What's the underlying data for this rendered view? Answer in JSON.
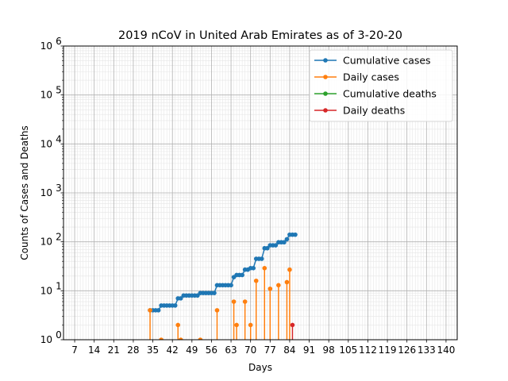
{
  "chart_data": {
    "type": "line",
    "title": "2019 nCoV in United Arab Emirates as of 3-20-20",
    "xlabel": "Days",
    "ylabel": "Counts of Cases and Deaths",
    "xlim": [
      3,
      144
    ],
    "ylim": [
      1,
      1000000
    ],
    "yscale": "log",
    "grid": true,
    "legend_position": "top-right",
    "x_ticks": [
      7,
      14,
      21,
      28,
      35,
      42,
      49,
      56,
      63,
      70,
      77,
      84,
      91,
      98,
      105,
      112,
      119,
      126,
      133,
      140
    ],
    "y_ticks": [
      {
        "value": 1,
        "base": "10",
        "exp": "0"
      },
      {
        "value": 10,
        "base": "10",
        "exp": "1"
      },
      {
        "value": 100,
        "base": "10",
        "exp": "2"
      },
      {
        "value": 1000,
        "base": "10",
        "exp": "3"
      },
      {
        "value": 10000,
        "base": "10",
        "exp": "4"
      },
      {
        "value": 100000,
        "base": "10",
        "exp": "5"
      },
      {
        "value": 1000000,
        "base": "10",
        "exp": "6"
      }
    ],
    "series": [
      {
        "name": "Cumulative cases",
        "color": "#1f77b4",
        "style": "line",
        "x": [
          34,
          35,
          36,
          37,
          38,
          39,
          40,
          41,
          42,
          43,
          44,
          45,
          46,
          47,
          48,
          49,
          50,
          51,
          52,
          53,
          54,
          55,
          56,
          57,
          58,
          59,
          60,
          61,
          62,
          63,
          64,
          65,
          66,
          67,
          68,
          69,
          70,
          71,
          72,
          73,
          74,
          75,
          76,
          77,
          78,
          79,
          80,
          81,
          82,
          83,
          84,
          85,
          86
        ],
        "y": [
          4,
          4,
          4,
          4,
          5,
          5,
          5,
          5,
          5,
          5,
          7,
          7,
          8,
          8,
          8,
          8,
          8,
          8,
          9,
          9,
          9,
          9,
          9,
          9,
          13,
          13,
          13,
          13,
          13,
          13,
          19,
          21,
          21,
          21,
          27,
          27,
          29,
          29,
          45,
          45,
          45,
          74,
          74,
          85,
          85,
          85,
          98,
          98,
          98,
          113,
          140,
          140,
          140
        ]
      },
      {
        "name": "Daily cases",
        "color": "#ff7f0e",
        "style": "stem",
        "x": [
          34,
          38,
          44,
          45,
          52,
          58,
          64,
          65,
          68,
          70,
          72,
          75,
          77,
          80,
          83,
          84
        ],
        "y": [
          4,
          1,
          2,
          1,
          1,
          4,
          6,
          2,
          6,
          2,
          16,
          29,
          11,
          13,
          15,
          27
        ]
      },
      {
        "name": "Cumulative deaths",
        "color": "#2ca02c",
        "style": "line",
        "x": [],
        "y": []
      },
      {
        "name": "Daily deaths",
        "color": "#d62728",
        "style": "stem",
        "x": [
          85
        ],
        "y": [
          2
        ]
      }
    ]
  }
}
